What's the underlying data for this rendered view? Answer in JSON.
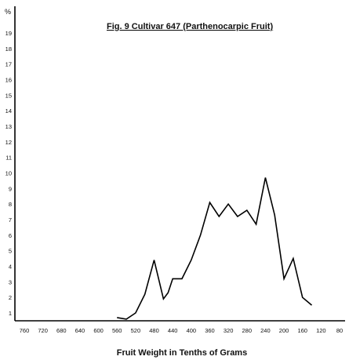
{
  "chart_data": {
    "type": "line",
    "title": "Fig. 9 Cultivar 647 (Parthenocarpic Fruit)",
    "xlabel": "Fruit Weight in Tenths of Grams",
    "ylabel": "%",
    "x_reversed": true,
    "xlim": [
      780,
      80
    ],
    "ylim": [
      0.5,
      20
    ],
    "x_ticks": [
      760,
      720,
      680,
      640,
      600,
      560,
      520,
      480,
      440,
      400,
      360,
      320,
      280,
      240,
      200,
      160,
      120,
      80
    ],
    "y_ticks": [
      1,
      2,
      3,
      4,
      5,
      6,
      7,
      8,
      9,
      10,
      11,
      12,
      13,
      14,
      15,
      16,
      17,
      18,
      19
    ],
    "grid": false,
    "legend": "none",
    "series": [
      {
        "x": [
          560,
          540,
          520,
          500,
          480,
          460,
          450,
          440,
          420,
          400,
          380,
          360,
          340,
          320,
          300,
          280,
          260,
          240,
          220,
          200,
          180,
          160,
          140
        ],
        "y": [
          0.7,
          0.6,
          1.0,
          2.2,
          4.4,
          1.9,
          2.3,
          3.2,
          3.2,
          4.4,
          6.0,
          8.1,
          7.2,
          8.0,
          7.2,
          7.6,
          6.7,
          9.7,
          7.3,
          3.2,
          4.5,
          2.0,
          1.5
        ]
      }
    ]
  }
}
